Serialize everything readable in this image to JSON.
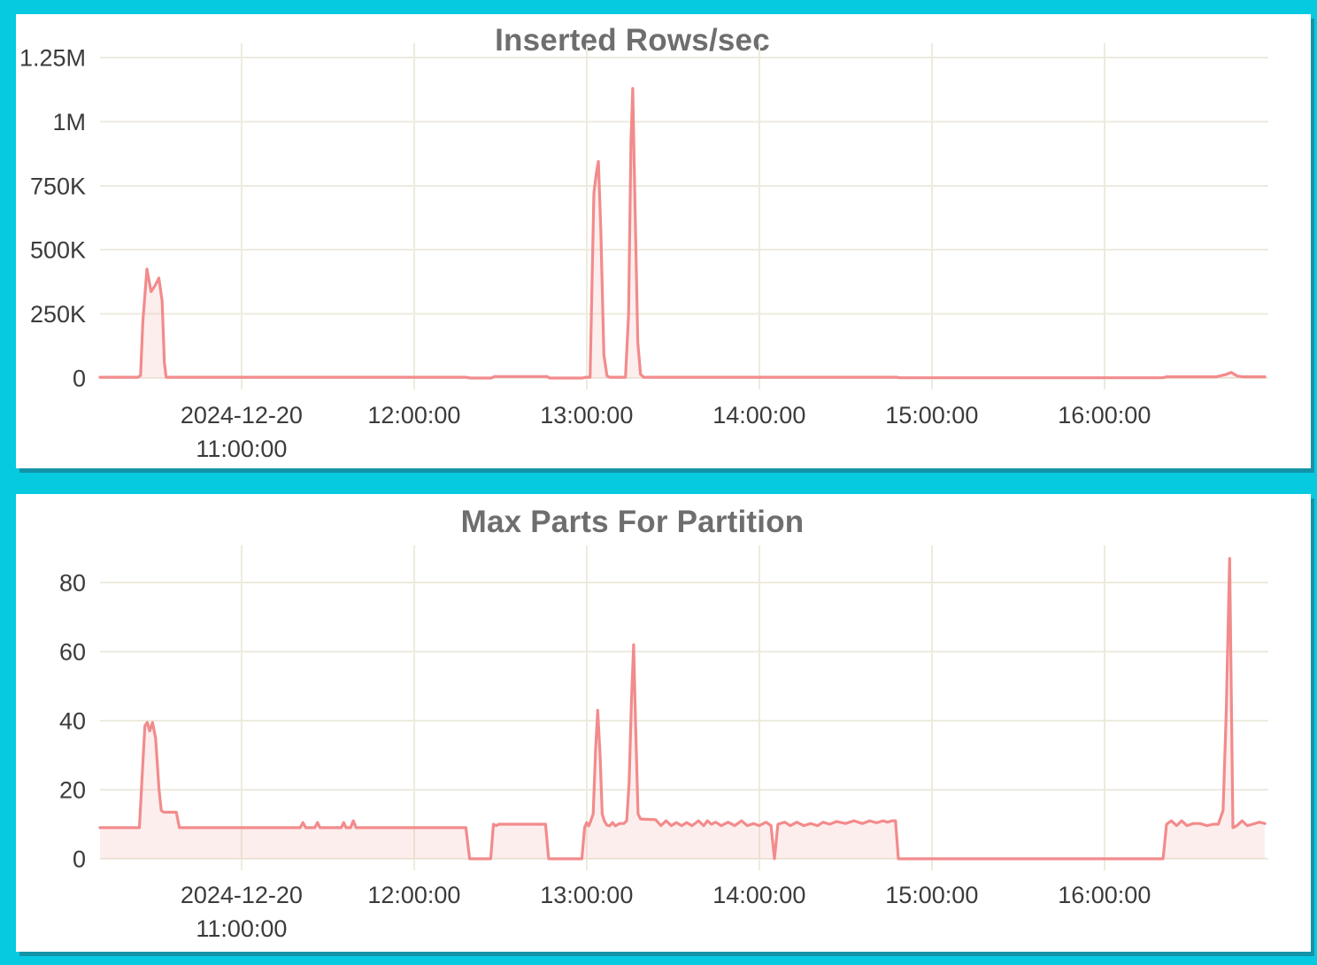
{
  "colors": {
    "background": "#06CAE0",
    "panel": "#FFFFFF",
    "panel_edge_shadow": "#1593A8",
    "series_line": "#F28B8C",
    "series_fill": "rgba(242,139,140,0.15)",
    "gridline": "#EDEBDE",
    "tick_label": "#3B3B3B",
    "title": "#6E6E6E"
  },
  "chart_data": [
    {
      "type": "area",
      "title": "Inserted Rows/sec",
      "legend": "none",
      "grid": true,
      "xlabel": "",
      "ylabel": "",
      "x_tick_labels": [
        [
          "2024-12-20",
          "11:00:00"
        ],
        [
          "12:00:00"
        ],
        [
          "13:00:00"
        ],
        [
          "14:00:00"
        ],
        [
          "15:00:00"
        ],
        [
          "16:00:00"
        ]
      ],
      "x_tick_hours": [
        0,
        1,
        2,
        3,
        4,
        5
      ],
      "x_range_hours": [
        -0.82,
        5.95
      ],
      "y_tick_values": [
        0,
        250000,
        500000,
        750000,
        1000000,
        1250000
      ],
      "y_tick_labels": [
        "0",
        "250K",
        "500K",
        "750K",
        "1M",
        "1.25M"
      ],
      "ylim": [
        0,
        1250000
      ],
      "series": [
        {
          "name": "inserted_rows_per_sec",
          "points": [
            [
              -0.82,
              3000
            ],
            [
              -0.6,
              3000
            ],
            [
              -0.585,
              10000
            ],
            [
              -0.572,
              220000
            ],
            [
              -0.548,
              425000
            ],
            [
              -0.524,
              337000
            ],
            [
              -0.5,
              362000
            ],
            [
              -0.479,
              390000
            ],
            [
              -0.46,
              300000
            ],
            [
              -0.447,
              60000
            ],
            [
              -0.437,
              3000
            ],
            [
              1.3,
              3000
            ],
            [
              1.326,
              0
            ],
            [
              1.448,
              0
            ],
            [
              1.465,
              6000
            ],
            [
              1.77,
              6000
            ],
            [
              1.786,
              0
            ],
            [
              1.975,
              0
            ],
            [
              1.995,
              3000
            ],
            [
              2.02,
              3000
            ],
            [
              2.042,
              720000
            ],
            [
              2.056,
              800000
            ],
            [
              2.068,
              845000
            ],
            [
              2.082,
              580000
            ],
            [
              2.1,
              90000
            ],
            [
              2.118,
              8000
            ],
            [
              2.135,
              3000
            ],
            [
              2.225,
              3000
            ],
            [
              2.243,
              250000
            ],
            [
              2.257,
              920000
            ],
            [
              2.267,
              1130000
            ],
            [
              2.281,
              650000
            ],
            [
              2.296,
              140000
            ],
            [
              2.312,
              15000
            ],
            [
              2.33,
              3000
            ],
            [
              3.795,
              3000
            ],
            [
              3.815,
              1000
            ],
            [
              5.34,
              1000
            ],
            [
              5.36,
              5000
            ],
            [
              5.65,
              5000
            ],
            [
              5.7,
              13000
            ],
            [
              5.735,
              22000
            ],
            [
              5.77,
              8000
            ],
            [
              5.8,
              5000
            ],
            [
              5.93,
              5000
            ]
          ]
        }
      ]
    },
    {
      "type": "area",
      "title": "Max Parts For Partition",
      "legend": "none",
      "grid": true,
      "xlabel": "",
      "ylabel": "",
      "x_tick_labels": [
        [
          "2024-12-20",
          "11:00:00"
        ],
        [
          "12:00:00"
        ],
        [
          "13:00:00"
        ],
        [
          "14:00:00"
        ],
        [
          "15:00:00"
        ],
        [
          "16:00:00"
        ]
      ],
      "x_tick_hours": [
        0,
        1,
        2,
        3,
        4,
        5
      ],
      "x_range_hours": [
        -0.82,
        5.95
      ],
      "y_tick_values": [
        0,
        20,
        40,
        60,
        80
      ],
      "y_tick_labels": [
        "0",
        "20",
        "40",
        "60",
        "80"
      ],
      "ylim": [
        0,
        80
      ],
      "series": [
        {
          "name": "max_parts_for_partition",
          "points": [
            [
              -0.82,
              9
            ],
            [
              -0.592,
              9
            ],
            [
              -0.578,
              22
            ],
            [
              -0.56,
              38.5
            ],
            [
              -0.546,
              39.5
            ],
            [
              -0.532,
              37
            ],
            [
              -0.516,
              39.5
            ],
            [
              -0.498,
              35
            ],
            [
              -0.478,
              20
            ],
            [
              -0.465,
              14
            ],
            [
              -0.452,
              13.5
            ],
            [
              -0.378,
              13.5
            ],
            [
              -0.36,
              9
            ],
            [
              0.34,
              9
            ],
            [
              0.356,
              10.5
            ],
            [
              0.372,
              9
            ],
            [
              0.425,
              9
            ],
            [
              0.44,
              10.5
            ],
            [
              0.455,
              9
            ],
            [
              0.578,
              9
            ],
            [
              0.592,
              10.5
            ],
            [
              0.606,
              9
            ],
            [
              0.632,
              9
            ],
            [
              0.648,
              11
            ],
            [
              0.664,
              9
            ],
            [
              1.3,
              9
            ],
            [
              1.322,
              0
            ],
            [
              1.444,
              0
            ],
            [
              1.46,
              10
            ],
            [
              1.475,
              9.6
            ],
            [
              1.492,
              10
            ],
            [
              1.762,
              10
            ],
            [
              1.78,
              0
            ],
            [
              1.972,
              0
            ],
            [
              1.988,
              9
            ],
            [
              2.0,
              10.5
            ],
            [
              2.012,
              9.5
            ],
            [
              2.024,
              11
            ],
            [
              2.038,
              13
            ],
            [
              2.052,
              32
            ],
            [
              2.064,
              43
            ],
            [
              2.078,
              30
            ],
            [
              2.09,
              13
            ],
            [
              2.102,
              11
            ],
            [
              2.116,
              9.8
            ],
            [
              2.132,
              9.5
            ],
            [
              2.15,
              10.5
            ],
            [
              2.166,
              9.5
            ],
            [
              2.19,
              10.2
            ],
            [
              2.215,
              10.2
            ],
            [
              2.232,
              11
            ],
            [
              2.246,
              22
            ],
            [
              2.26,
              46
            ],
            [
              2.272,
              62
            ],
            [
              2.284,
              38
            ],
            [
              2.298,
              13
            ],
            [
              2.312,
              11.5
            ],
            [
              2.4,
              11.3
            ],
            [
              2.43,
              9.6
            ],
            [
              2.46,
              11
            ],
            [
              2.49,
              9.6
            ],
            [
              2.52,
              10.5
            ],
            [
              2.55,
              9.6
            ],
            [
              2.58,
              10.5
            ],
            [
              2.61,
              9.6
            ],
            [
              2.648,
              11
            ],
            [
              2.678,
              9.6
            ],
            [
              2.7,
              11
            ],
            [
              2.722,
              10
            ],
            [
              2.748,
              10.6
            ],
            [
              2.78,
              9.6
            ],
            [
              2.82,
              10.6
            ],
            [
              2.858,
              9.6
            ],
            [
              2.898,
              11
            ],
            [
              2.93,
              9.6
            ],
            [
              2.968,
              10.2
            ],
            [
              3.0,
              9.6
            ],
            [
              3.04,
              10.6
            ],
            [
              3.068,
              9.6
            ],
            [
              3.088,
              0
            ],
            [
              3.108,
              10
            ],
            [
              3.148,
              10.6
            ],
            [
              3.18,
              9.6
            ],
            [
              3.218,
              10.6
            ],
            [
              3.258,
              9.6
            ],
            [
              3.298,
              10.2
            ],
            [
              3.338,
              9.6
            ],
            [
              3.37,
              10.6
            ],
            [
              3.408,
              10
            ],
            [
              3.448,
              10.8
            ],
            [
              3.5,
              10.2
            ],
            [
              3.548,
              11
            ],
            [
              3.598,
              10.2
            ],
            [
              3.64,
              11
            ],
            [
              3.68,
              10.4
            ],
            [
              3.718,
              11
            ],
            [
              3.744,
              10.6
            ],
            [
              3.768,
              11
            ],
            [
              3.79,
              11
            ],
            [
              3.806,
              0
            ],
            [
              5.34,
              0
            ],
            [
              5.36,
              10
            ],
            [
              5.388,
              11
            ],
            [
              5.418,
              9.6
            ],
            [
              5.448,
              11
            ],
            [
              5.478,
              9.6
            ],
            [
              5.515,
              10.2
            ],
            [
              5.555,
              10.2
            ],
            [
              5.595,
              9.6
            ],
            [
              5.63,
              10
            ],
            [
              5.66,
              10
            ],
            [
              5.688,
              14
            ],
            [
              5.706,
              42
            ],
            [
              5.726,
              87
            ],
            [
              5.736,
              45
            ],
            [
              5.745,
              9
            ],
            [
              5.768,
              9.6
            ],
            [
              5.798,
              11
            ],
            [
              5.828,
              9.6
            ],
            [
              5.858,
              10
            ],
            [
              5.898,
              10.6
            ],
            [
              5.93,
              10.2
            ]
          ]
        }
      ]
    }
  ]
}
